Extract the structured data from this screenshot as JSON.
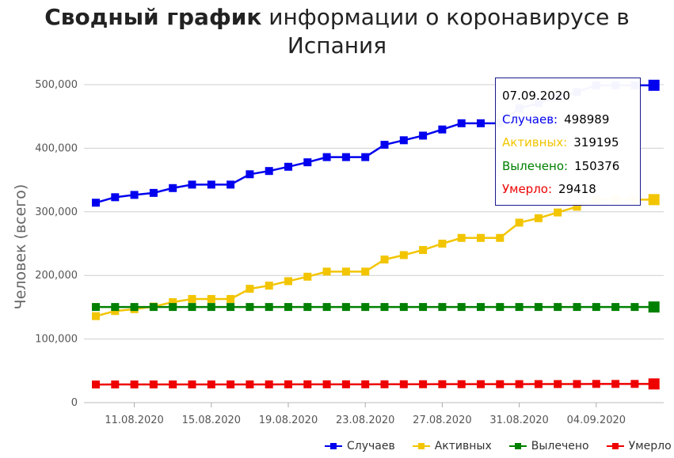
{
  "title": {
    "bold": "Сводный график",
    "rest": "информации о коронавирусе в Испания"
  },
  "tooltip": {
    "date": "07.09.2020",
    "rows": [
      {
        "label": "Случаев:",
        "value": "498989",
        "color": "#0000ee"
      },
      {
        "label": "Активных:",
        "value": "319195",
        "color": "#f2c500"
      },
      {
        "label": "Вылечено:",
        "value": "150376",
        "color": "#008000"
      },
      {
        "label": "Умерло:",
        "value": "29418",
        "color": "#ee0000"
      }
    ]
  },
  "chart_data": {
    "type": "line",
    "ylabel": "Человек (всего)",
    "ylim": [
      0,
      500000
    ],
    "yticks": [
      "0",
      "100,000",
      "200,000",
      "300,000",
      "400,000",
      "500,000"
    ],
    "grid": true,
    "legend_position": "bottom-right",
    "x": [
      "09.08.2020",
      "10.08.2020",
      "11.08.2020",
      "12.08.2020",
      "13.08.2020",
      "14.08.2020",
      "15.08.2020",
      "16.08.2020",
      "17.08.2020",
      "18.08.2020",
      "19.08.2020",
      "20.08.2020",
      "21.08.2020",
      "22.08.2020",
      "23.08.2020",
      "24.08.2020",
      "25.08.2020",
      "26.08.2020",
      "27.08.2020",
      "28.08.2020",
      "29.08.2020",
      "30.08.2020",
      "31.08.2020",
      "01.09.2020",
      "02.09.2020",
      "03.09.2020",
      "04.09.2020",
      "05.09.2020",
      "06.09.2020",
      "07.09.2020"
    ],
    "xtick_labels": [
      "11.08.2020",
      "15.08.2020",
      "19.08.2020",
      "23.08.2020",
      "27.08.2020",
      "31.08.2020",
      "04.09.2020"
    ],
    "series": [
      {
        "name": "Случаев",
        "color": "#0000ee",
        "values": [
          314362,
          322980,
          326612,
          329784,
          337334,
          342813,
          342813,
          342813,
          359082,
          364196,
          370867,
          377906,
          386054,
          386054,
          386054,
          405436,
          412553,
          419849,
          429507,
          439286,
          439286,
          439286,
          462858,
          470973,
          479554,
          488513,
          498989,
          498989,
          498989,
          498989
        ]
      },
      {
        "name": "Активных",
        "color": "#f2c500",
        "values": [
          136000,
          144000,
          147000,
          151000,
          158000,
          163000,
          163000,
          163000,
          179000,
          184000,
          191000,
          198000,
          206000,
          206000,
          206000,
          225000,
          232000,
          240000,
          250000,
          259000,
          259000,
          259000,
          283000,
          290000,
          299000,
          308000,
          319195,
          319195,
          319195,
          319195
        ]
      },
      {
        "name": "Вылечено",
        "color": "#008000",
        "values": [
          150376,
          150376,
          150376,
          150376,
          150376,
          150376,
          150376,
          150376,
          150376,
          150376,
          150376,
          150376,
          150376,
          150376,
          150376,
          150376,
          150376,
          150376,
          150376,
          150376,
          150376,
          150376,
          150376,
          150376,
          150376,
          150376,
          150376,
          150376,
          150376,
          150376
        ]
      },
      {
        "name": "Умерло",
        "color": "#ee0000",
        "values": [
          28503,
          28576,
          28579,
          28605,
          28617,
          28617,
          28617,
          28617,
          28646,
          28670,
          28797,
          28813,
          28838,
          28838,
          28838,
          28872,
          28924,
          28971,
          28996,
          29011,
          29011,
          29011,
          29094,
          29152,
          29194,
          29234,
          29418,
          29418,
          29418,
          29418
        ]
      }
    ]
  }
}
